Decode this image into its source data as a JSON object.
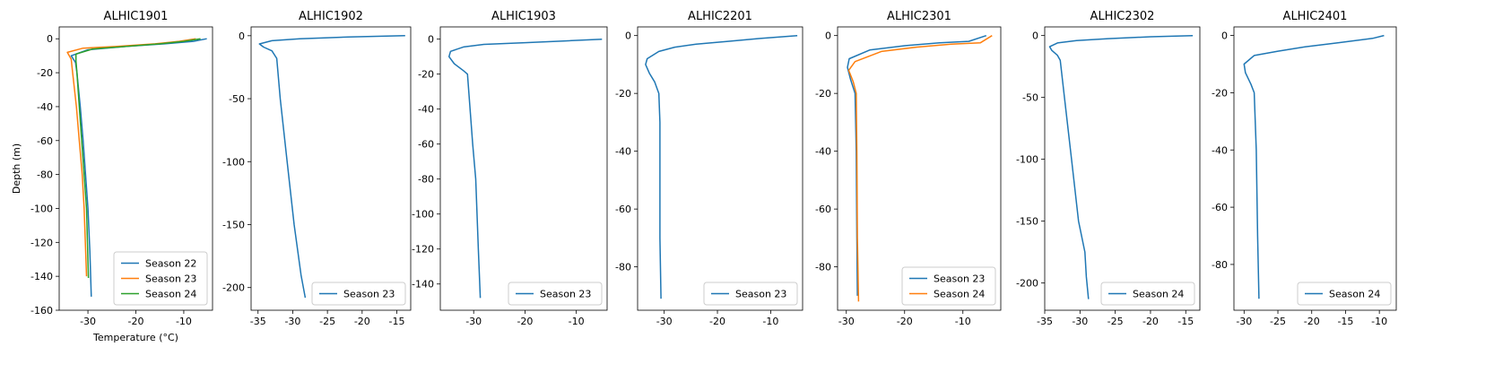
{
  "chart_data": [
    {
      "type": "line",
      "title": "ALHIC1901",
      "xlabel": "Temperature (°C)",
      "ylabel": "Depth (m)",
      "xlim": [
        -36,
        -4
      ],
      "ylim": [
        -160,
        7
      ],
      "xticks": [
        -30,
        -20,
        -10
      ],
      "yticks": [
        0,
        -20,
        -40,
        -60,
        -80,
        -100,
        -120,
        -140,
        -160
      ],
      "legend": "lower-right",
      "series": [
        {
          "name": "Season 22",
          "color": "#1f77b4",
          "x": [
            -5.2,
            -8,
            -14,
            -22,
            -30,
            -33.5,
            -32.6,
            -32.3,
            -31.6,
            -31,
            -30.5,
            -30,
            -29.6,
            -29.3
          ],
          "y": [
            0,
            -1.5,
            -3,
            -4.5,
            -6.5,
            -10,
            -14,
            -20,
            -40,
            -60,
            -80,
            -100,
            -125,
            -152
          ]
        },
        {
          "name": "Season 23",
          "color": "#ff7f0e",
          "x": [
            -7.5,
            -11,
            -16,
            -24,
            -31,
            -34.3,
            -33.5,
            -33.2,
            -32.4,
            -31.8,
            -31.2,
            -30.8,
            -30.3
          ],
          "y": [
            0,
            -1.5,
            -3,
            -4.5,
            -5.5,
            -8,
            -12,
            -20,
            -40,
            -60,
            -80,
            -100,
            -140
          ]
        },
        {
          "name": "Season 24",
          "color": "#2ca02c",
          "x": [
            -6.5,
            -10,
            -15,
            -22,
            -29,
            -32.5,
            -32.5,
            -32.3,
            -31.8,
            -31.3,
            -30.8,
            -30.3,
            -29.9
          ],
          "y": [
            0,
            -1.5,
            -3,
            -4.5,
            -6,
            -9,
            -13,
            -20,
            -40,
            -60,
            -80,
            -100,
            -141
          ]
        }
      ]
    },
    {
      "type": "line",
      "title": "ALHIC1902",
      "xlabel": "",
      "ylabel": "",
      "xlim": [
        -36,
        -13
      ],
      "ylim": [
        -218,
        7
      ],
      "xticks": [
        -35,
        -30,
        -25,
        -20,
        -15
      ],
      "yticks": [
        0,
        -50,
        -100,
        -150,
        -200
      ],
      "legend": "lower-right",
      "series": [
        {
          "name": "Season 23",
          "color": "#1f77b4",
          "x": [
            -13.8,
            -22,
            -29,
            -33,
            -34.8,
            -34.2,
            -33,
            -32.3,
            -31.8,
            -30.8,
            -29.8,
            -28.8,
            -28.2
          ],
          "y": [
            0,
            -1,
            -2.5,
            -4,
            -6.5,
            -9,
            -12,
            -18,
            -50,
            -100,
            -150,
            -190,
            -208
          ]
        }
      ]
    },
    {
      "type": "line",
      "title": "ALHIC1903",
      "xlabel": "",
      "ylabel": "",
      "xlim": [
        -36.5,
        -4
      ],
      "ylim": [
        -155,
        7
      ],
      "xticks": [
        -30,
        -20,
        -10
      ],
      "yticks": [
        0,
        -20,
        -40,
        -60,
        -80,
        -100,
        -120,
        -140
      ],
      "legend": "lower-right",
      "series": [
        {
          "name": "Season 23",
          "color": "#1f77b4",
          "x": [
            -5,
            -12,
            -20,
            -28,
            -32,
            -34.5,
            -34.8,
            -33.8,
            -32,
            -31.2,
            -30.7,
            -30.2,
            -29.6,
            -29.1,
            -28.7
          ],
          "y": [
            0,
            -1,
            -2,
            -3,
            -4.5,
            -7,
            -10,
            -14,
            -18,
            -20,
            -40,
            -60,
            -80,
            -120,
            -148
          ]
        }
      ]
    },
    {
      "type": "line",
      "title": "ALHIC2201",
      "xlabel": "",
      "ylabel": "",
      "xlim": [
        -35,
        -4
      ],
      "ylim": [
        -95,
        3
      ],
      "xticks": [
        -30,
        -20,
        -10
      ],
      "yticks": [
        0,
        -20,
        -40,
        -60,
        -80
      ],
      "legend": "lower-right",
      "series": [
        {
          "name": "Season 23",
          "color": "#1f77b4",
          "x": [
            -5,
            -12,
            -18,
            -24,
            -28,
            -31,
            -33.2,
            -33.5,
            -32.8,
            -31.8,
            -31,
            -30.8,
            -30.8,
            -30.8,
            -30.6
          ],
          "y": [
            0,
            -1,
            -2,
            -3,
            -4,
            -5.5,
            -8,
            -10,
            -13,
            -16,
            -20,
            -30,
            -50,
            -70,
            -91
          ]
        }
      ]
    },
    {
      "type": "line",
      "title": "ALHIC2301",
      "xlabel": "",
      "ylabel": "",
      "xlim": [
        -31.5,
        -3.5
      ],
      "ylim": [
        -95,
        3
      ],
      "xticks": [
        -30,
        -20,
        -10
      ],
      "yticks": [
        0,
        -20,
        -40,
        -60,
        -80
      ],
      "legend": "lower-right",
      "series": [
        {
          "name": "Season 23",
          "color": "#1f77b4",
          "x": [
            -6,
            -9,
            -14,
            -20,
            -26,
            -29.5,
            -29.8,
            -29.3,
            -28.5,
            -28.3,
            -28.2,
            -28.1
          ],
          "y": [
            0,
            -2,
            -2.5,
            -3.5,
            -5,
            -8,
            -11,
            -15,
            -20,
            -40,
            -70,
            -90
          ]
        },
        {
          "name": "Season 24",
          "color": "#ff7f0e",
          "x": [
            -5,
            -7,
            -12,
            -18,
            -24,
            -28.5,
            -29.6,
            -28.8,
            -28.3,
            -28.2,
            -28.1,
            -27.9
          ],
          "y": [
            0,
            -2.5,
            -3,
            -4,
            -5.5,
            -9,
            -12,
            -16,
            -20,
            -40,
            -70,
            -92
          ]
        }
      ]
    },
    {
      "type": "line",
      "title": "ALHIC2302",
      "xlabel": "",
      "ylabel": "",
      "xlim": [
        -35,
        -13
      ],
      "ylim": [
        -222,
        7
      ],
      "xticks": [
        -35,
        -30,
        -25,
        -20,
        -15
      ],
      "yticks": [
        0,
        -50,
        -100,
        -150,
        -200
      ],
      "legend": "lower-right",
      "series": [
        {
          "name": "Season 24",
          "color": "#1f77b4",
          "x": [
            -14,
            -20,
            -26,
            -30.5,
            -33.2,
            -34.3,
            -34,
            -33.2,
            -32.8,
            -32.2,
            -31.2,
            -30.2,
            -29.3,
            -29.1,
            -28.8
          ],
          "y": [
            0,
            -1,
            -2.5,
            -4,
            -6,
            -9,
            -12,
            -16,
            -20,
            -50,
            -100,
            -150,
            -175,
            -195,
            -213
          ]
        }
      ]
    },
    {
      "type": "line",
      "title": "ALHIC2401",
      "xlabel": "",
      "ylabel": "",
      "xlim": [
        -31.5,
        -7.5
      ],
      "ylim": [
        -96,
        3
      ],
      "xticks": [
        -30,
        -25,
        -20,
        -15,
        -10
      ],
      "yticks": [
        0,
        -20,
        -40,
        -60,
        -80
      ],
      "legend": "lower-right",
      "series": [
        {
          "name": "Season 24",
          "color": "#1f77b4",
          "x": [
            -9.3,
            -11,
            -16,
            -21,
            -25,
            -28.5,
            -30,
            -29.8,
            -29,
            -28.5,
            -28.2,
            -28,
            -27.8
          ],
          "y": [
            0,
            -1,
            -2.5,
            -4,
            -5.5,
            -7,
            -10,
            -13,
            -17,
            -20,
            -40,
            -70,
            -92
          ]
        }
      ]
    }
  ]
}
